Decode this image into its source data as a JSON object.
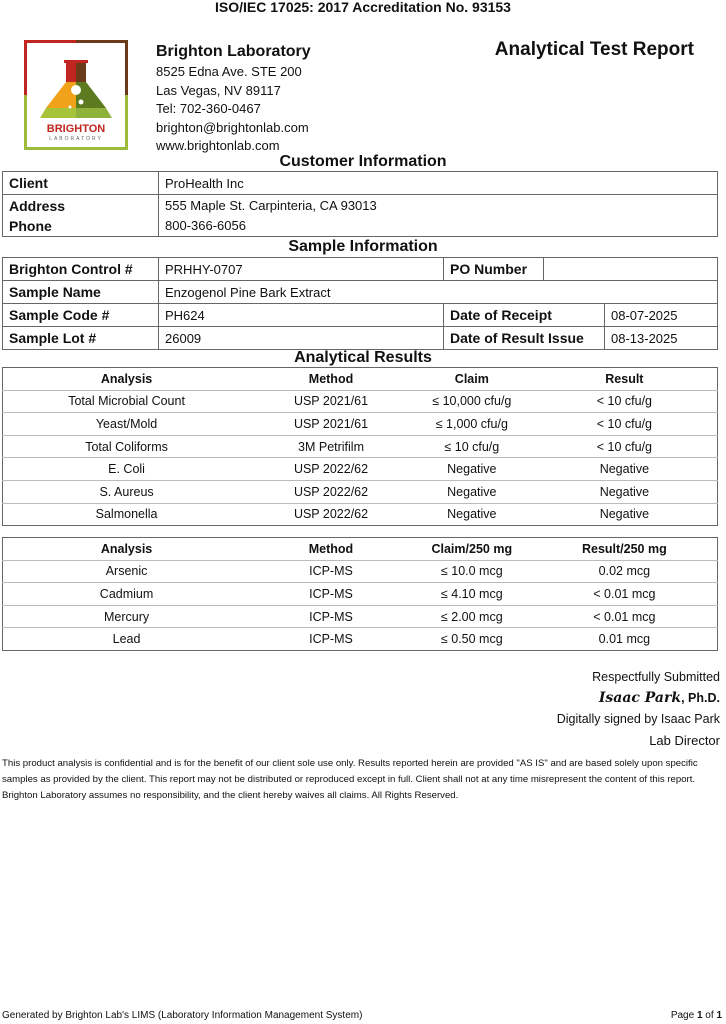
{
  "accreditation": "ISO/IEC 17025: 2017 Accreditation No. 93153",
  "logo": {
    "text": "BRIGHTON",
    "subtext": "LABORATORY"
  },
  "lab": {
    "name": "Brighton Laboratory",
    "address1": "8525 Edna Ave. STE 200",
    "address2": "Las Vegas, NV 89117",
    "tel": "Tel: 702-360-0467",
    "email": "brighton@brightonlab.com",
    "web": "www.brightonlab.com"
  },
  "report_title": "Analytical Test Report",
  "customer": {
    "heading": "Customer Information",
    "client_label": "Client",
    "client": "ProHealth Inc",
    "address_label": "Address",
    "address": "555 Maple St. Carpinteria, CA 93013",
    "phone_label": "Phone",
    "phone": "800-366-6056"
  },
  "sample": {
    "heading": "Sample Information",
    "control_label": "Brighton Control #",
    "control": "PRHHY-0707",
    "po_label": "PO Number",
    "po": "",
    "name_label": "Sample Name",
    "name": "Enzogenol Pine Bark Extract",
    "code_label": "Sample Code #",
    "code": "PH624",
    "receipt_label": "Date of Receipt",
    "receipt": "08-07-2025",
    "lot_label": "Sample Lot #",
    "lot": "26009",
    "issue_label": "Date of Result Issue",
    "issue": "08-13-2025"
  },
  "results": {
    "heading": "Analytical Results",
    "micro": {
      "headers": [
        "Analysis",
        "Method",
        "Claim",
        "Result"
      ],
      "rows": [
        [
          "Total Microbial Count",
          "USP 2021/61",
          "≤ 10,000 cfu/g",
          "< 10 cfu/g"
        ],
        [
          "Yeast/Mold",
          "USP 2021/61",
          "≤ 1,000 cfu/g",
          "< 10 cfu/g"
        ],
        [
          "Total Coliforms",
          "3M Petrifilm",
          "≤ 10 cfu/g",
          "< 10 cfu/g"
        ],
        [
          "E. Coli",
          "USP 2022/62",
          "Negative",
          "Negative"
        ],
        [
          "S. Aureus",
          "USP 2022/62",
          "Negative",
          "Negative"
        ],
        [
          "Salmonella",
          "USP 2022/62",
          "Negative",
          "Negative"
        ]
      ]
    },
    "metals": {
      "headers": [
        "Analysis",
        "Method",
        "Claim/250 mg",
        "Result/250 mg"
      ],
      "rows": [
        [
          "Arsenic",
          "ICP-MS",
          "≤ 10.0 mcg",
          "0.02 mcg"
        ],
        [
          "Cadmium",
          "ICP-MS",
          "≤ 4.10 mcg",
          "< 0.01 mcg"
        ],
        [
          "Mercury",
          "ICP-MS",
          "≤ 2.00 mcg",
          "< 0.01 mcg"
        ],
        [
          "Lead",
          "ICP-MS",
          "≤ 0.50 mcg",
          "0.01 mcg"
        ]
      ]
    }
  },
  "signature": {
    "submitted": "Respectfully Submitted",
    "name": "Isaac Park",
    "degree": ", Ph.D.",
    "digital": "Digitally signed by Isaac Park",
    "title": "Lab Director"
  },
  "disclaimer": "This product analysis is confidential and is for the benefit of our client sole use only. Results reported herein are provided \"AS IS\" and are based solely upon specific samples as provided by the client. This report may not be distributed or reproduced except in full. Client shall not at any time misrepresent the content of this report. Brighton Laboratory assumes no responsibility, and the client hereby waives all claims. All Rights Reserved.",
  "footer": {
    "generated": "Generated by Brighton Lab's LIMS (Laboratory Information Management System)",
    "page_prefix": "Page ",
    "page": "1",
    "of": " of ",
    "total": "1"
  }
}
